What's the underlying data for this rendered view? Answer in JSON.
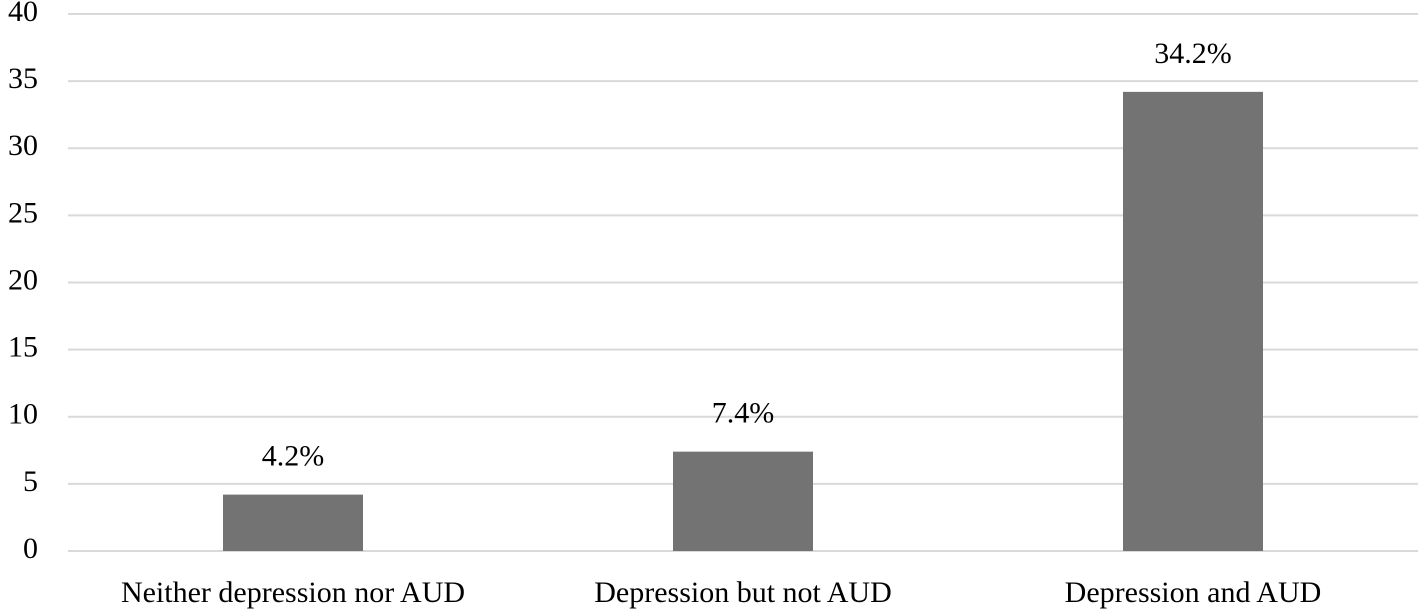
{
  "chart_data": {
    "type": "bar",
    "categories": [
      "Neither depression nor AUD",
      "Depression but not AUD",
      "Depression and AUD"
    ],
    "values": [
      4.2,
      7.4,
      34.2
    ],
    "value_labels": [
      "4.2%",
      "7.4%",
      "34.2%"
    ],
    "color": "#737373",
    "ylim": [
      0,
      40
    ],
    "yticks": [
      0,
      5,
      10,
      15,
      20,
      25,
      30,
      35,
      40
    ],
    "grid": true
  }
}
